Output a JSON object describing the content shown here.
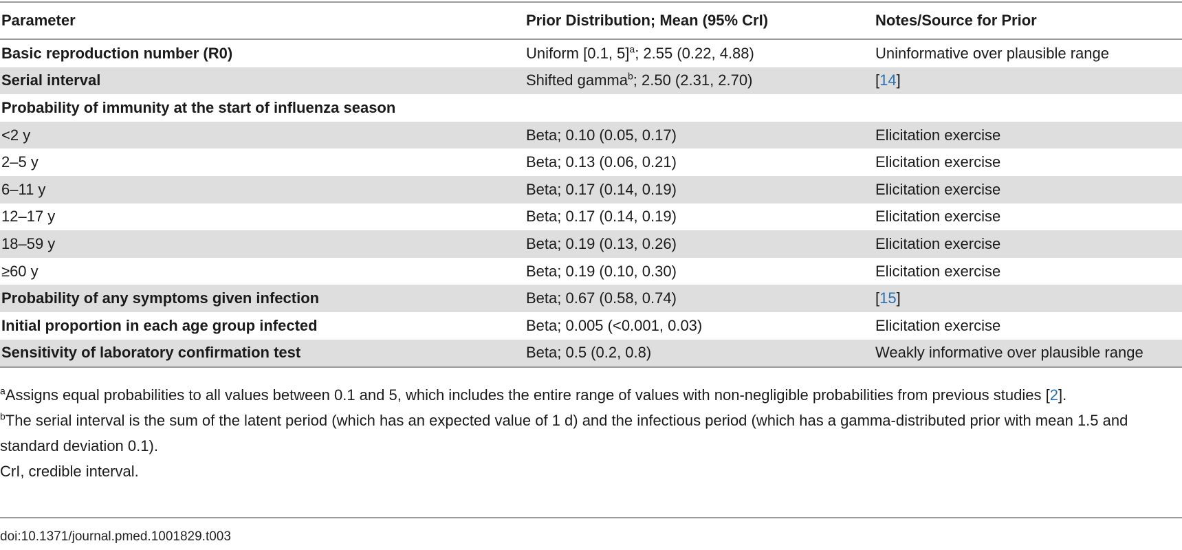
{
  "table": {
    "headers": [
      "Parameter",
      "Prior Distribution; Mean (95% CrI)",
      "Notes/Source for Prior"
    ],
    "rows": [
      {
        "param": "Basic reproduction number (R0)",
        "prior_a": "Uniform [0.1, 5]",
        "prior_sup": "a",
        "prior_b": "; 2.55 (0.22, 4.88)",
        "note": "Uninformative over plausible range"
      },
      {
        "param": "Serial interval",
        "prior_a": "Shifted gamma",
        "prior_sup": "b",
        "prior_b": "; 2.50 (2.31, 2.70)",
        "note_pre": "[",
        "note_ref": "14",
        "note_post": "]"
      },
      {
        "param": "Probability of immunity at the start of influenza season"
      },
      {
        "param": "<2 y",
        "prior": "Beta; 0.10 (0.05, 0.17)",
        "note": "Elicitation exercise"
      },
      {
        "param": "2–5 y",
        "prior": "Beta; 0.13 (0.06, 0.21)",
        "note": "Elicitation exercise"
      },
      {
        "param": "6–11 y",
        "prior": "Beta; 0.17 (0.14, 0.19)",
        "note": "Elicitation exercise"
      },
      {
        "param": "12–17 y",
        "prior": "Beta; 0.17 (0.14, 0.19)",
        "note": "Elicitation exercise"
      },
      {
        "param": "18–59 y",
        "prior": "Beta; 0.19 (0.13, 0.26)",
        "note": "Elicitation exercise"
      },
      {
        "param": "≥60 y",
        "prior": "Beta; 0.19 (0.10, 0.30)",
        "note": "Elicitation exercise"
      },
      {
        "param": "Probability of any symptoms given infection",
        "prior": "Beta; 0.67 (0.58, 0.74)",
        "note_pre": "[",
        "note_ref": "15",
        "note_post": "]"
      },
      {
        "param": "Initial proportion in each age group infected",
        "prior": "Beta; 0.005 (<0.001, 0.03)",
        "note": "Elicitation exercise"
      },
      {
        "param": "Sensitivity of laboratory confirmation test",
        "prior": "Beta; 0.5 (0.2, 0.8)",
        "note": "Weakly informative over plausible range"
      }
    ]
  },
  "footnotes": {
    "a_sup": "a",
    "a_text": "Assigns equal probabilities to all values between 0.1 and 5, which includes the entire range of values with non-negligible probabilities from previous studies [",
    "a_ref": "2",
    "a_end": "].",
    "b_sup": "b",
    "b_text": "The serial interval is the sum of the latent period (which has an expected value of 1 d) and the infectious period (which has a gamma-distributed prior with mean 1.5 and standard deviation 0.1).",
    "abbr": "CrI, credible interval."
  },
  "doi": "doi:10.1371/journal.pmed.1001829.t003",
  "colors": {
    "link": "#2a6fb0",
    "stripe": "#dedede",
    "rule": "#9a9a9a"
  }
}
